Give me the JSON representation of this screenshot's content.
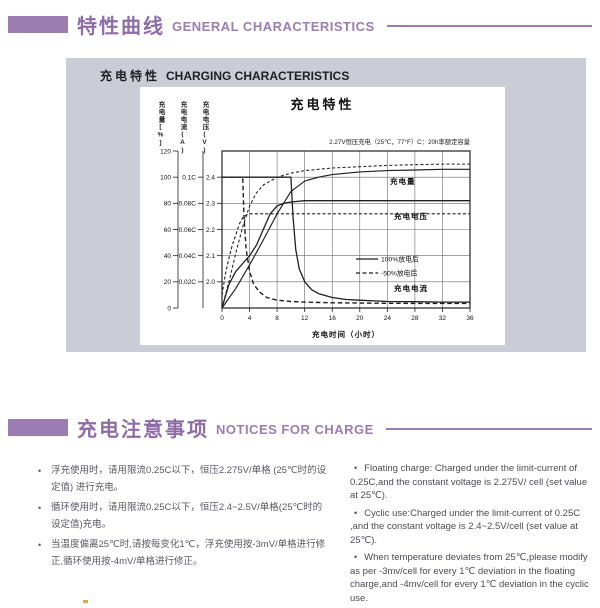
{
  "sections": {
    "general_characteristics": {
      "heading_zh": "特性曲线",
      "heading_en": "GENERAL CHARACTERISTICS",
      "charging_panel": {
        "title_zh": "充电特性",
        "title_en": "CHARGING CHARACTERISTICS"
      }
    },
    "notices_for_charge": {
      "heading_zh": "充电注意事项",
      "heading_en": "NOTICES FOR CHARGE",
      "bullet": "•",
      "notes_zh": [
        "浮充使用时，请用限流0.25C以下，恒压2.275V/单格 (25℃时的设定值) 进行充电。",
        "循环使用时，请用限流0.25C以下，恒压2.4~2.5V/单格(25℃时的设定值)充电。",
        "当温度偏离25℃时,请按每变化1℃，浮充使用按-3mV/单格进行修正,循环使用按-4mV/单格进行修正。"
      ],
      "notes_en": [
        "Floating charge: Charged under the limit-current of 0.25C,and the constant voltage is 2.275V/ cell (set value at 25℃).",
        "Cyclic use:Charged under the limit-current of 0.25C ,and the constant voltage is 2.4~2.5V/cell (set value at 25℃).",
        "When temperature deviates from 25℃,please modify as per -3mv/cell for every 1℃ deviation in the floating charge,and -4mv/cell for every 1℃ deviation in the cyclic use."
      ]
    }
  },
  "chart_data": {
    "type": "line",
    "title": "充电特性",
    "note": "2.27V恒压充电（25℃，77°F）C：20h率额定容量",
    "xlabel": "充电时间（小时）",
    "xlim": [
      0,
      36
    ],
    "x_ticks": [
      "0",
      "4",
      "8",
      "12",
      "16",
      "20",
      "24",
      "28",
      "32",
      "36"
    ],
    "grid": true,
    "legend_position": "center-right",
    "y_axes": [
      {
        "id": "percent",
        "label": "充电量[%]",
        "range": [
          0,
          120
        ],
        "tick_labels": [
          "120",
          "100",
          "80",
          "60",
          "40",
          "20",
          "0"
        ]
      },
      {
        "id": "current",
        "label": "充电电流(A)",
        "range": [
          0,
          0.1
        ],
        "tick_labels": [
          "0.1C",
          "0.08C",
          "0.06C",
          "0.04C",
          "0.02C"
        ]
      },
      {
        "id": "voltage",
        "label": "充电电压(V)",
        "range": [
          2.0,
          2.4
        ],
        "tick_labels": [
          "2.4",
          "2.3",
          "2.2",
          "2.1",
          "2.0"
        ]
      }
    ],
    "legend": [
      {
        "dashed": false,
        "label": "100%放电后"
      },
      {
        "dashed": true,
        "label": "-50%放电后"
      }
    ],
    "curve_labels": [
      "充电量",
      "充电电压",
      "充电电流"
    ],
    "series": [
      {
        "id": "quantity-100",
        "label": "充电量（100%放电后）",
        "axis": "percent",
        "dashed": false,
        "width": 1.15,
        "points": [
          [
            0,
            0
          ],
          [
            2,
            15
          ],
          [
            4,
            33
          ],
          [
            6,
            52
          ],
          [
            8,
            72
          ],
          [
            10,
            89
          ],
          [
            12,
            97
          ],
          [
            14,
            100
          ],
          [
            16,
            102
          ],
          [
            20,
            104
          ],
          [
            24,
            105
          ],
          [
            28,
            105.5
          ],
          [
            32,
            106
          ],
          [
            36,
            106
          ]
        ]
      },
      {
        "id": "quantity-50",
        "label": "充电量（-50%放电后）",
        "axis": "percent",
        "dashed": true,
        "width": 1.05,
        "points": [
          [
            0,
            0
          ],
          [
            1,
            20
          ],
          [
            2,
            42
          ],
          [
            3,
            62
          ],
          [
            4,
            78
          ],
          [
            5,
            88
          ],
          [
            6,
            94
          ],
          [
            8,
            100
          ],
          [
            10,
            103
          ],
          [
            12,
            105
          ],
          [
            16,
            107
          ],
          [
            20,
            108
          ],
          [
            24,
            109
          ],
          [
            28,
            109.5
          ],
          [
            32,
            110
          ],
          [
            36,
            110
          ]
        ]
      },
      {
        "id": "voltage-100",
        "label": "充电电压（100%放电后）",
        "axis": "voltage",
        "dashed": false,
        "width": 1.3,
        "points": [
          [
            0,
            1.9
          ],
          [
            1,
            1.99
          ],
          [
            2,
            2.04
          ],
          [
            3,
            2.07
          ],
          [
            4,
            2.1
          ],
          [
            5,
            2.14
          ],
          [
            6,
            2.2
          ],
          [
            7,
            2.26
          ],
          [
            8,
            2.29
          ],
          [
            9,
            2.3
          ],
          [
            10,
            2.305
          ],
          [
            12,
            2.31
          ],
          [
            16,
            2.31
          ],
          [
            20,
            2.31
          ],
          [
            24,
            2.31
          ],
          [
            28,
            2.31
          ],
          [
            32,
            2.31
          ],
          [
            36,
            2.31
          ]
        ]
      },
      {
        "id": "voltage-50",
        "label": "充电电压（-50%放电后）",
        "axis": "voltage",
        "dashed": true,
        "width": 1.1,
        "points": [
          [
            0,
            1.95
          ],
          [
            0.5,
            2.03
          ],
          [
            1,
            2.09
          ],
          [
            1.5,
            2.14
          ],
          [
            2,
            2.18
          ],
          [
            2.5,
            2.22
          ],
          [
            3,
            2.245
          ],
          [
            3.5,
            2.255
          ],
          [
            4,
            2.26
          ],
          [
            6,
            2.26
          ],
          [
            8,
            2.26
          ],
          [
            12,
            2.26
          ],
          [
            16,
            2.26
          ],
          [
            24,
            2.26
          ],
          [
            36,
            2.26
          ]
        ]
      },
      {
        "id": "current-100",
        "label": "充电电流（100%放电后）",
        "axis": "current",
        "dashed": false,
        "width": 1.3,
        "points": [
          [
            0,
            0.1
          ],
          [
            10,
            0.1
          ],
          [
            10.3,
            0.07
          ],
          [
            10.7,
            0.045
          ],
          [
            11.2,
            0.03
          ],
          [
            12,
            0.02
          ],
          [
            13,
            0.014
          ],
          [
            14,
            0.011
          ],
          [
            16,
            0.008
          ],
          [
            18,
            0.0065
          ],
          [
            20,
            0.006
          ],
          [
            24,
            0.005
          ],
          [
            28,
            0.0048
          ],
          [
            32,
            0.0045
          ],
          [
            36,
            0.0045
          ]
        ]
      },
      {
        "id": "current-50",
        "label": "充电电流（-50%放电后）",
        "axis": "current",
        "dashed": true,
        "width": 1.4,
        "points": [
          [
            0,
            0.1
          ],
          [
            3,
            0.1
          ],
          [
            3.2,
            0.07
          ],
          [
            3.5,
            0.045
          ],
          [
            4,
            0.028
          ],
          [
            4.6,
            0.018
          ],
          [
            5.5,
            0.012
          ],
          [
            6.5,
            0.008
          ],
          [
            8,
            0.006
          ],
          [
            10,
            0.005
          ],
          [
            12,
            0.0045
          ],
          [
            16,
            0.004
          ],
          [
            20,
            0.0038
          ],
          [
            24,
            0.0036
          ],
          [
            28,
            0.0035
          ],
          [
            32,
            0.0035
          ],
          [
            36,
            0.0035
          ]
        ]
      }
    ]
  },
  "colors": {
    "accent_purple": "#9b7db1",
    "heading_text_purple": "#8e6da6",
    "panel_gray": "#cbccd6",
    "chart_line": "#1f1f1f",
    "grid_line": "#6b6b6b",
    "body_text": "#5a5862",
    "footer_dot_orange": "#efa14d"
  }
}
